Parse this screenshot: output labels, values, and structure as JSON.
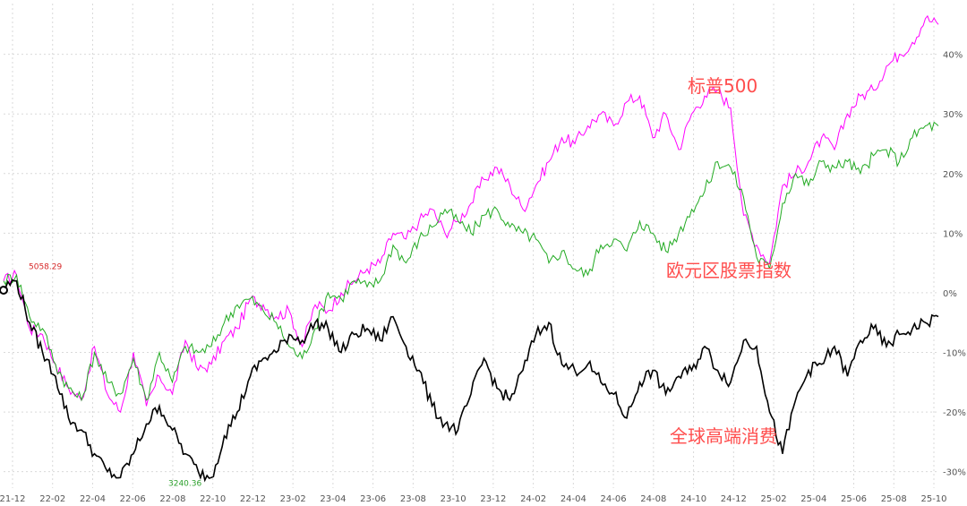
{
  "chart_data": {
    "type": "line",
    "title": "",
    "xlabel": "",
    "ylabel": "",
    "x_ticks": [
      "21-12",
      "22-02",
      "22-04",
      "22-06",
      "22-08",
      "22-10",
      "22-12",
      "23-02",
      "23-04",
      "23-06",
      "23-08",
      "23-10",
      "23-12",
      "24-02",
      "24-04",
      "24-06",
      "24-08",
      "24-10",
      "24-12",
      "25-02",
      "25-04",
      "25-06",
      "25-08",
      "25-10"
    ],
    "y_ticks": [
      {
        "value": 40,
        "label": "40%"
      },
      {
        "value": 30,
        "label": "30%"
      },
      {
        "value": 20,
        "label": "20%"
      },
      {
        "value": 10,
        "label": "10%"
      },
      {
        "value": 0,
        "label": "0%"
      },
      {
        "value": -10,
        "label": "-10%"
      },
      {
        "value": -20,
        "label": "-20%"
      },
      {
        "value": -30,
        "label": "-30%"
      }
    ],
    "ylim": [
      -32,
      47
    ],
    "grid": true,
    "annotations": [
      {
        "text": "5058.29",
        "x": "22-01",
        "y": 3.5,
        "color": "#d62728"
      },
      {
        "text": "3240.36",
        "x": "22-10",
        "y": -31.5,
        "color": "#2ca02c"
      }
    ],
    "series": [
      {
        "name": "标普500",
        "color": "#ff00ff",
        "label_color": "#ff4d4d",
        "values": [
          [
            0,
            2
          ],
          [
            1,
            3
          ],
          [
            2,
            -6
          ],
          [
            3,
            -7
          ],
          [
            4,
            -12
          ],
          [
            5,
            -16
          ],
          [
            6,
            -18
          ],
          [
            7,
            -9
          ],
          [
            8,
            -17
          ],
          [
            9,
            -20
          ],
          [
            10,
            -10
          ],
          [
            11,
            -19
          ],
          [
            12,
            -14
          ],
          [
            13,
            -17
          ],
          [
            14,
            -8
          ],
          [
            15,
            -13
          ],
          [
            16,
            -12
          ],
          [
            17,
            -8
          ],
          [
            18,
            -6
          ],
          [
            19,
            -1
          ],
          [
            20,
            -2
          ],
          [
            21,
            -4
          ],
          [
            22,
            -3
          ],
          [
            23,
            -9
          ],
          [
            24,
            -2
          ],
          [
            25,
            -3
          ],
          [
            26,
            0
          ],
          [
            27,
            2
          ],
          [
            28,
            4
          ],
          [
            29,
            5
          ],
          [
            30,
            10
          ],
          [
            31,
            9
          ],
          [
            32,
            12
          ],
          [
            33,
            14
          ],
          [
            34,
            10
          ],
          [
            35,
            12
          ],
          [
            36,
            15
          ],
          [
            37,
            19
          ],
          [
            38,
            21
          ],
          [
            39,
            18
          ],
          [
            40,
            14
          ],
          [
            41,
            18
          ],
          [
            42,
            22
          ],
          [
            43,
            26
          ],
          [
            44,
            25
          ],
          [
            45,
            28
          ],
          [
            46,
            30
          ],
          [
            47,
            28
          ],
          [
            48,
            32
          ],
          [
            49,
            33
          ],
          [
            50,
            26
          ],
          [
            51,
            30
          ],
          [
            52,
            24
          ],
          [
            53,
            30
          ],
          [
            54,
            33
          ],
          [
            55,
            34
          ],
          [
            56,
            31
          ],
          [
            57,
            13
          ],
          [
            58,
            8
          ],
          [
            59,
            5
          ],
          [
            60,
            18
          ],
          [
            61,
            20
          ],
          [
            62,
            22
          ],
          [
            63,
            26
          ],
          [
            64,
            24
          ],
          [
            65,
            30
          ],
          [
            66,
            33
          ],
          [
            67,
            34
          ],
          [
            68,
            38
          ],
          [
            69,
            40
          ],
          [
            70,
            42
          ],
          [
            71,
            46
          ],
          [
            72,
            45
          ]
        ]
      },
      {
        "name": "欧元区股票指数",
        "color": "#22aa22",
        "label_color": "#ff4d4d",
        "values": [
          [
            0,
            2
          ],
          [
            1,
            3
          ],
          [
            2,
            -4
          ],
          [
            3,
            -6
          ],
          [
            4,
            -12
          ],
          [
            5,
            -16
          ],
          [
            6,
            -18
          ],
          [
            7,
            -10
          ],
          [
            8,
            -15
          ],
          [
            9,
            -17
          ],
          [
            10,
            -11
          ],
          [
            11,
            -18
          ],
          [
            12,
            -10
          ],
          [
            13,
            -15
          ],
          [
            14,
            -9
          ],
          [
            15,
            -10
          ],
          [
            16,
            -9
          ],
          [
            17,
            -5
          ],
          [
            18,
            -2
          ],
          [
            19,
            -1
          ],
          [
            20,
            -3
          ],
          [
            21,
            -5
          ],
          [
            22,
            -9
          ],
          [
            23,
            -11
          ],
          [
            24,
            -6
          ],
          [
            25,
            0
          ],
          [
            26,
            -1
          ],
          [
            27,
            2
          ],
          [
            28,
            1
          ],
          [
            29,
            2
          ],
          [
            30,
            8
          ],
          [
            31,
            5
          ],
          [
            32,
            9
          ],
          [
            33,
            11
          ],
          [
            34,
            14
          ],
          [
            35,
            12
          ],
          [
            36,
            10
          ],
          [
            37,
            13
          ],
          [
            38,
            14
          ],
          [
            39,
            11
          ],
          [
            40,
            10
          ],
          [
            41,
            9
          ],
          [
            42,
            5
          ],
          [
            43,
            7
          ],
          [
            44,
            4
          ],
          [
            45,
            3
          ],
          [
            46,
            8
          ],
          [
            47,
            9
          ],
          [
            48,
            7
          ],
          [
            49,
            12
          ],
          [
            50,
            10
          ],
          [
            51,
            7
          ],
          [
            52,
            10
          ],
          [
            53,
            14
          ],
          [
            54,
            17
          ],
          [
            55,
            22
          ],
          [
            56,
            21
          ],
          [
            57,
            16
          ],
          [
            58,
            6
          ],
          [
            59,
            4
          ],
          [
            60,
            15
          ],
          [
            61,
            20
          ],
          [
            62,
            18
          ],
          [
            63,
            22
          ],
          [
            64,
            21
          ],
          [
            65,
            22
          ],
          [
            66,
            20
          ],
          [
            67,
            23
          ],
          [
            68,
            24
          ],
          [
            69,
            22
          ],
          [
            70,
            26
          ],
          [
            71,
            28
          ],
          [
            72,
            28
          ]
        ]
      },
      {
        "name": "全球高端消费",
        "color": "#000000",
        "label_color": "#ff4d4d",
        "values": [
          [
            0,
            1
          ],
          [
            1,
            2
          ],
          [
            2,
            -5
          ],
          [
            3,
            -10
          ],
          [
            4,
            -14
          ],
          [
            5,
            -21
          ],
          [
            6,
            -23
          ],
          [
            7,
            -27
          ],
          [
            8,
            -30
          ],
          [
            9,
            -31
          ],
          [
            10,
            -27
          ],
          [
            11,
            -22
          ],
          [
            12,
            -19
          ],
          [
            13,
            -23
          ],
          [
            14,
            -27
          ],
          [
            15,
            -30
          ],
          [
            16,
            -31
          ],
          [
            17,
            -24
          ],
          [
            18,
            -20
          ],
          [
            19,
            -14
          ],
          [
            20,
            -11
          ],
          [
            21,
            -10
          ],
          [
            22,
            -7
          ],
          [
            23,
            -8
          ],
          [
            24,
            -5
          ],
          [
            25,
            -6
          ],
          [
            26,
            -10
          ],
          [
            27,
            -7
          ],
          [
            28,
            -6
          ],
          [
            29,
            -8
          ],
          [
            30,
            -4
          ],
          [
            31,
            -9
          ],
          [
            32,
            -13
          ],
          [
            33,
            -19
          ],
          [
            34,
            -22
          ],
          [
            35,
            -23
          ],
          [
            36,
            -17
          ],
          [
            37,
            -11
          ],
          [
            38,
            -16
          ],
          [
            39,
            -18
          ],
          [
            40,
            -13
          ],
          [
            41,
            -7
          ],
          [
            42,
            -5
          ],
          [
            43,
            -12
          ],
          [
            44,
            -13
          ],
          [
            45,
            -12
          ],
          [
            46,
            -15
          ],
          [
            47,
            -17
          ],
          [
            48,
            -21
          ],
          [
            49,
            -15
          ],
          [
            50,
            -13
          ],
          [
            51,
            -17
          ],
          [
            52,
            -14
          ],
          [
            53,
            -13
          ],
          [
            54,
            -9
          ],
          [
            55,
            -13
          ],
          [
            56,
            -15
          ],
          [
            57,
            -8
          ],
          [
            58,
            -9
          ],
          [
            59,
            -20
          ],
          [
            60,
            -27
          ],
          [
            61,
            -18
          ],
          [
            62,
            -13
          ],
          [
            63,
            -12
          ],
          [
            64,
            -9
          ],
          [
            65,
            -14
          ],
          [
            66,
            -8
          ],
          [
            67,
            -6
          ],
          [
            68,
            -9
          ],
          [
            69,
            -7
          ],
          [
            70,
            -6
          ],
          [
            71,
            -5
          ],
          [
            72,
            -4
          ]
        ]
      }
    ],
    "series_labels": [
      {
        "text": "标普500",
        "series": 0
      },
      {
        "text": "欧元区股票指数",
        "series": 1
      },
      {
        "text": "全球高端消费",
        "series": 2
      }
    ]
  }
}
